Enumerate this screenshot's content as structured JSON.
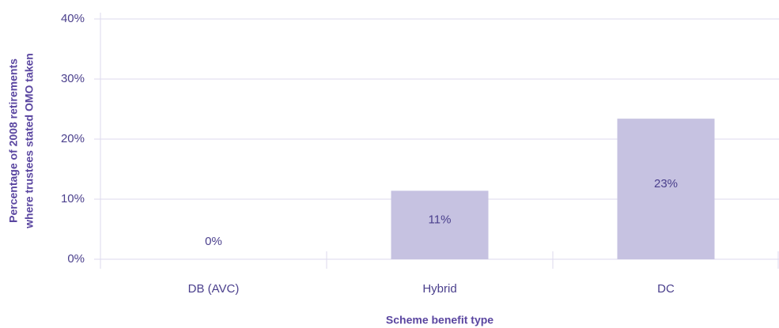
{
  "chart_data": {
    "type": "bar",
    "categories": [
      "DB (AVC)",
      "Hybrid",
      "DC"
    ],
    "values": [
      0,
      11.4,
      23.4
    ],
    "value_labels": [
      "0%",
      "11%",
      "23%"
    ],
    "color": "#c6c2e1",
    "ylim": [
      0,
      40
    ],
    "yticks": [
      {
        "value": 0,
        "label": "0%"
      },
      {
        "value": 10,
        "label": "10%"
      },
      {
        "value": 20,
        "label": "20%"
      },
      {
        "value": 30,
        "label": "30%"
      },
      {
        "value": 40,
        "label": "40%"
      }
    ],
    "grid": true,
    "xlabel": "Scheme benefit type",
    "ylabel": [
      "Percentage of 2008 retirements",
      "where trustees stated OMO taken"
    ]
  }
}
